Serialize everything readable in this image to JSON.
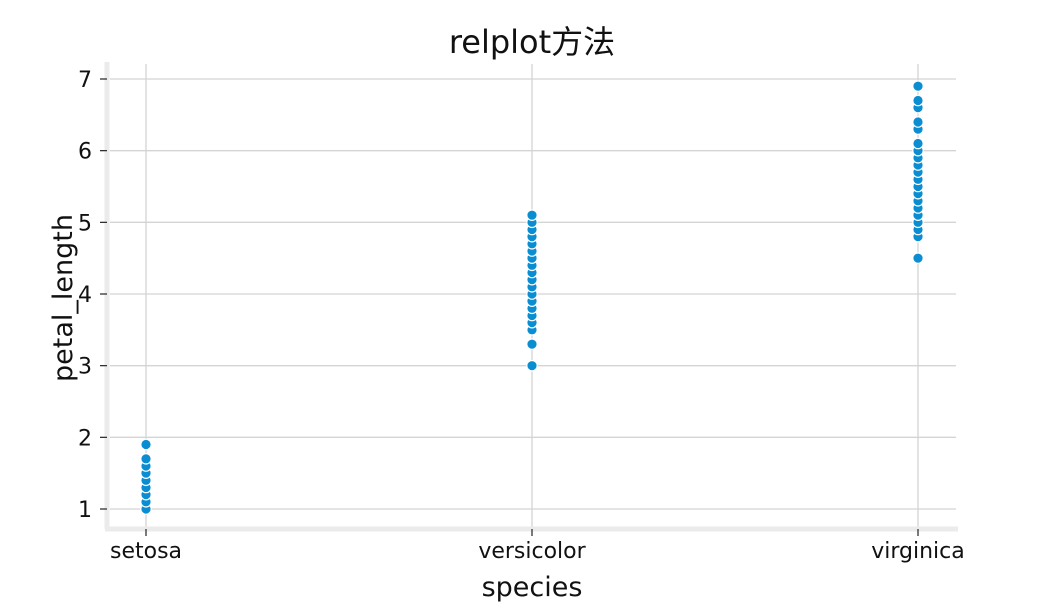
{
  "chart_data": {
    "type": "scatter",
    "title": "relplot方法",
    "xlabel": "species",
    "ylabel": "petal_length",
    "categories": [
      "setosa",
      "versicolor",
      "virginica"
    ],
    "ylim": [
      0.7,
      7.2
    ],
    "yticks": [
      1,
      2,
      3,
      4,
      5,
      6,
      7
    ],
    "grid": true,
    "point_color": "#0b8ed1",
    "series": [
      {
        "category": "setosa",
        "values": [
          1.0,
          1.1,
          1.2,
          1.3,
          1.4,
          1.5,
          1.6,
          1.7,
          1.9
        ]
      },
      {
        "category": "versicolor",
        "values": [
          3.0,
          3.3,
          3.5,
          3.6,
          3.7,
          3.8,
          3.9,
          4.0,
          4.1,
          4.2,
          4.3,
          4.4,
          4.5,
          4.6,
          4.7,
          4.8,
          4.9,
          5.0,
          5.1
        ]
      },
      {
        "category": "virginica",
        "values": [
          4.5,
          4.8,
          4.9,
          5.0,
          5.1,
          5.2,
          5.3,
          5.4,
          5.5,
          5.6,
          5.7,
          5.8,
          5.9,
          6.0,
          6.1,
          6.3,
          6.4,
          6.6,
          6.7,
          6.9
        ]
      }
    ]
  }
}
